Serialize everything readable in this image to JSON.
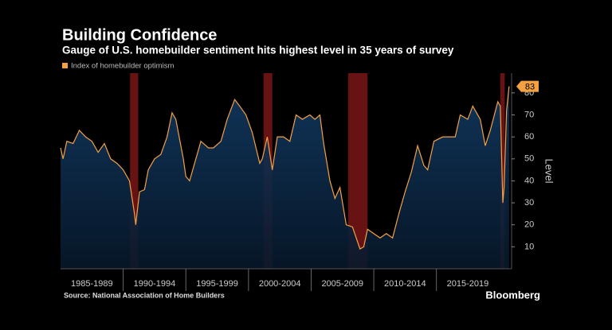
{
  "chart_data": {
    "type": "area-line",
    "title": "Building Confidence",
    "subtitle": "Gauge of U.S. homebuilder sentiment hits highest level in 35 years of survey",
    "y_label": "Level",
    "source": "Source: National Association of Home Builders",
    "brand": "Bloomberg",
    "xlim": [
      1985,
      2021
    ],
    "ylim": [
      0,
      89
    ],
    "yticks": [
      10,
      20,
      30,
      40,
      50,
      60,
      70,
      80
    ],
    "xticks": [
      {
        "value": 1987.5,
        "label": "1985-1989"
      },
      {
        "value": 1992.5,
        "label": "1990-1994"
      },
      {
        "value": 1997.5,
        "label": "1995-1999"
      },
      {
        "value": 2002.5,
        "label": "2000-2004"
      },
      {
        "value": 2007.5,
        "label": "2005-2009"
      },
      {
        "value": 2012.5,
        "label": "2010-2014"
      },
      {
        "value": 2017.5,
        "label": "2015-2019"
      }
    ],
    "recessions": [
      [
        1990.55,
        1991.2
      ],
      [
        2001.2,
        2001.9
      ],
      [
        2007.95,
        2009.5
      ],
      [
        2020.1,
        2020.45
      ]
    ],
    "recession_color": "#8a1a1a",
    "grid": false,
    "x": [
      1985.0,
      1985.2,
      1985.5,
      1986.0,
      1986.5,
      1987.0,
      1987.5,
      1988.0,
      1988.5,
      1989.0,
      1989.5,
      1990.0,
      1990.5,
      1990.9,
      1991.0,
      1991.3,
      1991.7,
      1992.0,
      1992.5,
      1993.0,
      1993.5,
      1993.9,
      1994.2,
      1994.8,
      1995.0,
      1995.3,
      1995.8,
      1996.2,
      1996.8,
      1997.2,
      1997.8,
      1998.3,
      1998.9,
      1999.3,
      1999.8,
      2000.3,
      2000.9,
      2001.1,
      2001.5,
      2001.9,
      2002.3,
      2002.8,
      2003.3,
      2003.8,
      2004.3,
      2004.9,
      2005.3,
      2005.7,
      2006.0,
      2006.5,
      2006.9,
      2007.3,
      2007.8,
      2008.3,
      2008.9,
      2009.2,
      2009.5,
      2010.0,
      2010.5,
      2011.0,
      2011.5,
      2012.0,
      2012.5,
      2013.0,
      2013.5,
      2014.0,
      2014.3,
      2014.8,
      2015.5,
      2016.0,
      2016.5,
      2016.9,
      2017.5,
      2017.9,
      2018.5,
      2018.9,
      2019.3,
      2019.9,
      2020.1,
      2020.3,
      2020.4,
      2020.6,
      2020.8
    ],
    "series": [
      {
        "name": "Index of homebuilder optimism",
        "color": "#f5a142",
        "values": [
          55,
          50,
          58,
          57,
          63,
          60,
          58,
          53,
          57,
          50,
          48,
          45,
          40,
          25,
          20,
          35,
          36,
          45,
          50,
          52,
          60,
          71,
          68,
          50,
          42,
          40,
          50,
          58,
          55,
          55,
          58,
          68,
          77,
          74,
          70,
          62,
          48,
          50,
          60,
          45,
          60,
          60,
          58,
          70,
          68,
          70,
          68,
          70,
          57,
          40,
          32,
          37,
          20,
          19,
          9,
          10,
          18,
          16,
          14,
          16,
          14,
          25,
          35,
          44,
          56,
          47,
          45,
          58,
          60,
          60,
          60,
          70,
          68,
          74,
          68,
          56,
          63,
          76,
          74,
          30,
          37,
          72,
          83
        ]
      }
    ]
  }
}
